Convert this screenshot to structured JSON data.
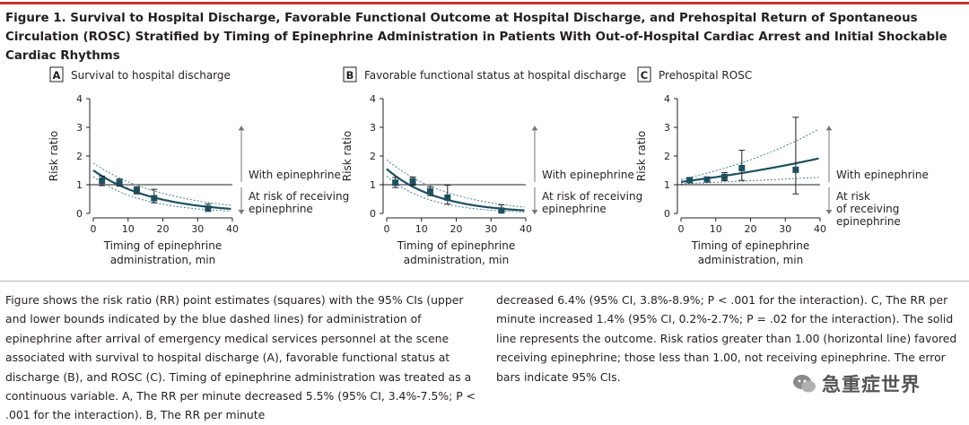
{
  "figure": {
    "title": "Figure 1. Survival to Hospital Discharge, Favorable Functional Outcome at Hospital Discharge, and Prehospital Return of Spontaneous Circulation (ROSC) Stratified by Timing of Epinephrine Administration in Patients With Out-of-Hospital Cardiac Arrest and Initial Shockable Cardiac Rhythms",
    "caption_left": "Figure shows the risk ratio (RR) point estimates (squares) with the 95% CIs (upper and lower bounds indicated by the blue dashed lines) for administration of epinephrine after arrival of emergency medical services personnel at the scene associated with survival to hospital discharge (A), favorable functional status at discharge (B), and ROSC (C). Timing of epinephrine administration was treated as a continuous variable. A, The RR per minute decreased 5.5% (95% CI, 3.4%-7.5%; P < .001 for the interaction). B, The RR per minute",
    "caption_right": "decreased 6.4% (95% CI, 3.8%-8.9%; P < .001 for the interaction). C, The RR per minute increased 1.4% (95% CI, 0.2%-2.7%; P = .02 for the interaction). The solid line represents the outcome. Risk ratios greater than 1.00 (horizontal line) favored receiving epinephrine; those less than 1.00, not receiving epinephrine. The error bars indicate 95% CIs.",
    "watermark": "急重症世界"
  },
  "colors": {
    "curve": "#1d4f5f",
    "ci": "#4a7f91",
    "marker": "#1d4f5f",
    "reference": "#231f20",
    "arrow": "#777777",
    "axis": "#231f20",
    "rule": "#c9302c"
  },
  "chart_data": [
    {
      "type": "scatter",
      "panel_letter": "A",
      "title": "Survival to hospital discharge",
      "xlabel": "Timing of epinephrine administration, min",
      "ylabel": "Risk ratio",
      "xlim": [
        0,
        40
      ],
      "ylim": [
        0,
        4
      ],
      "xticks": [
        0,
        10,
        20,
        30,
        40
      ],
      "yticks": [
        0,
        1,
        2,
        3,
        4
      ],
      "reference_line": 1,
      "points": [
        {
          "x": 2.5,
          "y": 1.14,
          "lo": 0.97,
          "hi": 1.3
        },
        {
          "x": 7.5,
          "y": 1.07,
          "lo": 0.95,
          "hi": 1.2
        },
        {
          "x": 12.5,
          "y": 0.8,
          "lo": 0.68,
          "hi": 0.93
        },
        {
          "x": 17.5,
          "y": 0.53,
          "lo": 0.37,
          "hi": 0.84
        },
        {
          "x": 33,
          "y": 0.17,
          "lo": 0.07,
          "hi": 0.33
        }
      ],
      "curve": {
        "a": 1.5,
        "rate": -0.057
      },
      "ci_upper": {
        "a": 1.75,
        "rate": -0.046
      },
      "ci_lower": {
        "a": 1.28,
        "rate": -0.07
      },
      "upper_label": "With epinephrine",
      "lower_label": "At risk of receiving epinephrine"
    },
    {
      "type": "scatter",
      "panel_letter": "B",
      "title": "Favorable functional status at hospital discharge",
      "xlabel": "Timing of epinephrine administration, min",
      "ylabel": "Risk ratio",
      "xlim": [
        0,
        40
      ],
      "ylim": [
        0,
        4
      ],
      "xticks": [
        0,
        10,
        20,
        30,
        40
      ],
      "yticks": [
        0,
        1,
        2,
        3,
        4
      ],
      "reference_line": 1,
      "points": [
        {
          "x": 2.5,
          "y": 1.07,
          "lo": 0.9,
          "hi": 1.25
        },
        {
          "x": 7.5,
          "y": 1.12,
          "lo": 0.98,
          "hi": 1.27
        },
        {
          "x": 12.5,
          "y": 0.77,
          "lo": 0.62,
          "hi": 0.93
        },
        {
          "x": 17.5,
          "y": 0.55,
          "lo": 0.32,
          "hi": 0.98
        },
        {
          "x": 33,
          "y": 0.1,
          "lo": 0.03,
          "hi": 0.3
        }
      ],
      "curve": {
        "a": 1.55,
        "rate": -0.068
      },
      "ci_upper": {
        "a": 1.87,
        "rate": -0.054
      },
      "ci_lower": {
        "a": 1.3,
        "rate": -0.082
      },
      "upper_label": "With epinephrine",
      "lower_label": "At risk of receiving epinephrine"
    },
    {
      "type": "scatter",
      "panel_letter": "C",
      "title": "Prehospital ROSC",
      "xlabel": "Timing of epinephrine administration, min",
      "ylabel": "Risk ratio",
      "xlim": [
        0,
        40
      ],
      "ylim": [
        0,
        4
      ],
      "xticks": [
        0,
        10,
        20,
        30,
        40
      ],
      "yticks": [
        0,
        1,
        2,
        3,
        4
      ],
      "reference_line": 1,
      "points": [
        {
          "x": 2.5,
          "y": 1.16,
          "lo": 1.07,
          "hi": 1.25
        },
        {
          "x": 7.5,
          "y": 1.18,
          "lo": 1.1,
          "hi": 1.27
        },
        {
          "x": 12.5,
          "y": 1.27,
          "lo": 1.14,
          "hi": 1.42
        },
        {
          "x": 17.5,
          "y": 1.58,
          "lo": 1.15,
          "hi": 2.2
        },
        {
          "x": 33,
          "y": 1.52,
          "lo": 0.68,
          "hi": 3.35
        }
      ],
      "curve": {
        "a": 1.1,
        "rate": 0.014
      },
      "ci_upper": {
        "a": 1.18,
        "rate": 0.023
      },
      "ci_lower": {
        "a": 1.03,
        "rate": 0.005
      },
      "upper_label": "With epinephrine",
      "lower_label": "At risk of receiving epinephrine"
    }
  ]
}
